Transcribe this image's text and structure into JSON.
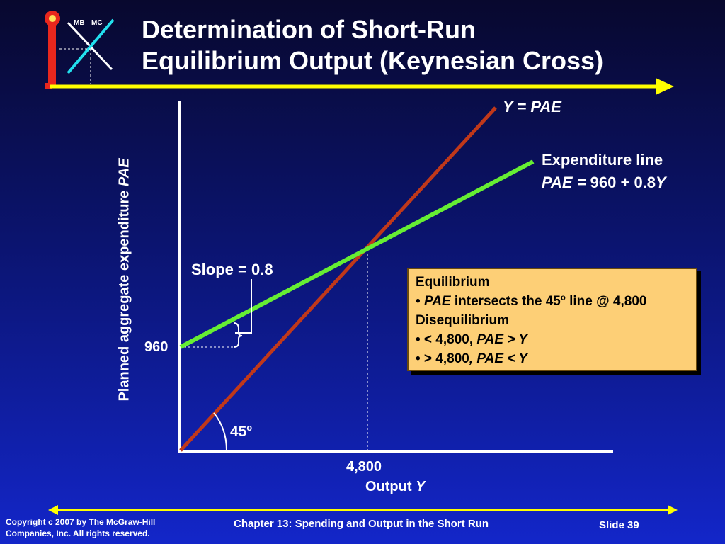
{
  "logo": {
    "mb_label": "MB",
    "mc_label": "MC"
  },
  "title": {
    "line1": "Determination of Short-Run",
    "line2": "Equilibrium Output (Keynesian Cross)"
  },
  "axes": {
    "y_label_text": "Planned aggregate expenditure ",
    "y_label_var": "PAE",
    "x_label_text": "Output ",
    "x_label_var": "Y"
  },
  "lines": {
    "diagonal_label": "Y = PAE",
    "expenditure_title": "Expenditure line",
    "expenditure_eq_var": "PAE =",
    "expenditure_eq_text": " 960 + 0.8",
    "expenditure_eq_y": "Y"
  },
  "annotations": {
    "slope": "Slope = 0.8",
    "intercept": "960",
    "equilibrium_x": "4,800",
    "angle": "45",
    "angle_sup": "o"
  },
  "info_box": {
    "heading1": "Equilibrium",
    "item1_bullet": "• ",
    "item1_var": "PAE",
    "item1_text": " intersects the 45",
    "item1_sup": "o",
    "item1_tail": " line @ 4,800",
    "heading2": "Disequilibrium",
    "item2_text": "• < 4,800, ",
    "item2_var": "PAE > Y",
    "item3_text": "• > 4,800",
    "item3_var": ", PAE < Y"
  },
  "footer": {
    "copyright_line1": "Copyright c 2007 by The McGraw-Hill",
    "copyright_line2": "Companies, Inc.  All rights reserved.",
    "chapter": "Chapter 13: Spending and Output in the Short Run",
    "slide": "Slide 39"
  },
  "colors": {
    "diagonal": "#c0381a",
    "expenditure": "#66ee33",
    "accent_yellow": "#ffff00",
    "box_fill": "#fdcf76"
  }
}
